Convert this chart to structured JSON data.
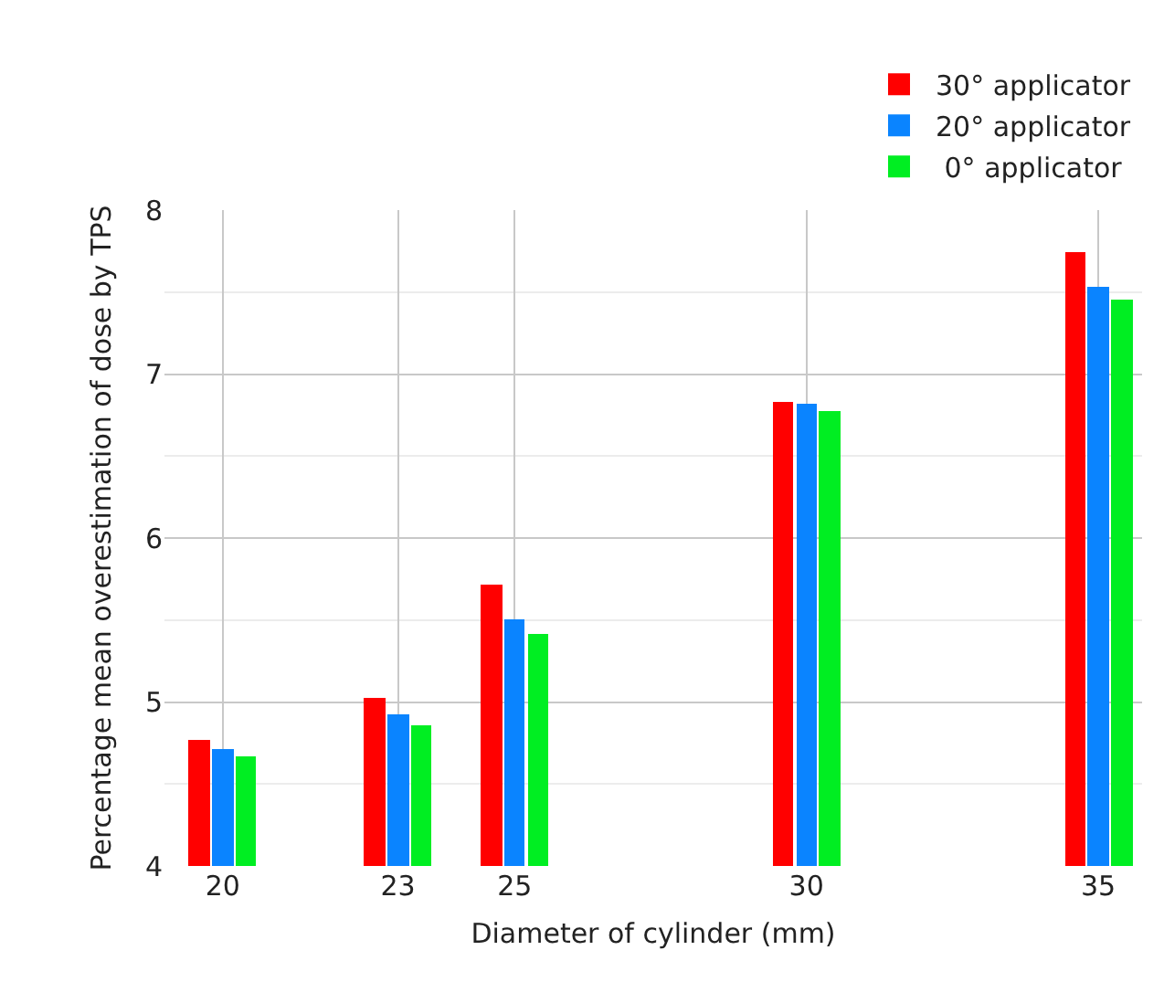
{
  "chart_data": {
    "type": "bar",
    "xlabel": "Diameter of cylinder (mm)",
    "ylabel": "Percentage mean overestimation of dose by TPS",
    "x": [
      20,
      23,
      25,
      30,
      35
    ],
    "series": [
      {
        "name": "30° applicator",
        "color": "#ff0000",
        "values": [
          4.77,
          5.02,
          5.72,
          6.83,
          7.74
        ]
      },
      {
        "name": "20° applicator",
        "color": "#0a84ff",
        "values": [
          4.71,
          4.92,
          5.5,
          6.82,
          7.53
        ]
      },
      {
        "name": " 0° applicator",
        "color": "#00ee22",
        "values": [
          4.67,
          4.86,
          5.41,
          6.77,
          7.45
        ]
      }
    ],
    "xlim": [
      19,
      35.75
    ],
    "xticks": [
      20,
      23,
      25,
      30,
      35
    ],
    "ylim": [
      4,
      8
    ],
    "yticks": [
      4,
      5,
      6,
      7,
      8
    ],
    "grid": true,
    "legend": "top right"
  }
}
